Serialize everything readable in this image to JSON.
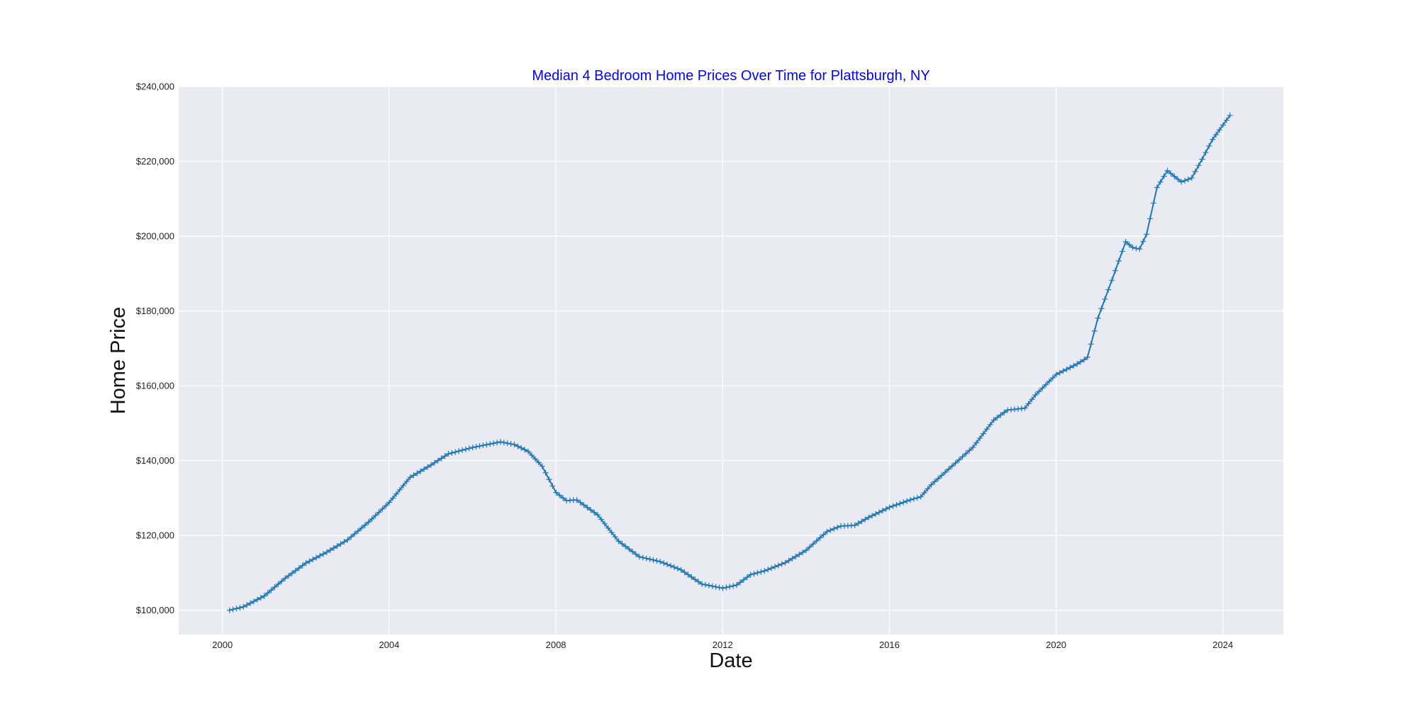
{
  "chart_data": {
    "type": "line",
    "title": "Median 4 Bedroom Home Prices Over Time for Plattsburgh, NY",
    "xlabel": "Date",
    "ylabel": "Home Price",
    "xlim": [
      1998.95,
      2025.45
    ],
    "ylim": [
      93500,
      240000
    ],
    "x_ticks": [
      2000,
      2004,
      2008,
      2012,
      2016,
      2020,
      2024
    ],
    "x_tick_labels": [
      "2000",
      "2004",
      "2008",
      "2012",
      "2016",
      "2020",
      "2024"
    ],
    "y_ticks": [
      100000,
      120000,
      140000,
      160000,
      180000,
      200000,
      220000,
      240000
    ],
    "y_tick_labels": [
      "$100,000",
      "$120,000",
      "$140,000",
      "$160,000",
      "$180,000",
      "$200,000",
      "$220,000",
      "$240,000"
    ],
    "grid": true,
    "marker": "+",
    "colors": {
      "line": "#1f77b4",
      "title": "#0000ff",
      "plot_background": "#eaeaf2",
      "grid": "#ffffff"
    },
    "key_points": [
      [
        2000.17,
        100000
      ],
      [
        2000.5,
        100900
      ],
      [
        2001.0,
        103800
      ],
      [
        2001.5,
        108500
      ],
      [
        2002.0,
        112600
      ],
      [
        2002.5,
        115500
      ],
      [
        2003.0,
        118800
      ],
      [
        2003.5,
        123500
      ],
      [
        2004.0,
        128800
      ],
      [
        2004.5,
        135500
      ],
      [
        2005.0,
        138800
      ],
      [
        2005.42,
        141800
      ],
      [
        2006.0,
        143500
      ],
      [
        2006.67,
        145000
      ],
      [
        2007.0,
        144300
      ],
      [
        2007.33,
        142500
      ],
      [
        2007.67,
        138500
      ],
      [
        2008.0,
        131500
      ],
      [
        2008.25,
        129300
      ],
      [
        2008.5,
        129500
      ],
      [
        2009.0,
        125500
      ],
      [
        2009.5,
        118500
      ],
      [
        2010.0,
        114300
      ],
      [
        2010.5,
        113000
      ],
      [
        2011.0,
        110800
      ],
      [
        2011.5,
        107000
      ],
      [
        2012.0,
        105900
      ],
      [
        2012.33,
        106700
      ],
      [
        2012.67,
        109500
      ],
      [
        2013.0,
        110500
      ],
      [
        2013.5,
        112700
      ],
      [
        2014.0,
        116000
      ],
      [
        2014.5,
        121000
      ],
      [
        2014.83,
        122500
      ],
      [
        2015.17,
        122700
      ],
      [
        2015.5,
        124800
      ],
      [
        2016.0,
        127500
      ],
      [
        2016.5,
        129500
      ],
      [
        2016.75,
        130300
      ],
      [
        2017.0,
        133500
      ],
      [
        2017.5,
        138500
      ],
      [
        2018.0,
        143500
      ],
      [
        2018.5,
        150800
      ],
      [
        2018.83,
        153500
      ],
      [
        2019.25,
        154000
      ],
      [
        2019.5,
        157500
      ],
      [
        2020.0,
        163000
      ],
      [
        2020.5,
        165800
      ],
      [
        2020.75,
        167500
      ],
      [
        2021.0,
        178000
      ],
      [
        2021.33,
        188000
      ],
      [
        2021.67,
        198500
      ],
      [
        2021.83,
        197000
      ],
      [
        2022.0,
        196500
      ],
      [
        2022.17,
        200500
      ],
      [
        2022.42,
        213000
      ],
      [
        2022.67,
        217500
      ],
      [
        2023.0,
        214500
      ],
      [
        2023.25,
        215500
      ],
      [
        2023.5,
        220500
      ],
      [
        2023.75,
        225800
      ],
      [
        2024.25,
        233500
      ]
    ]
  }
}
